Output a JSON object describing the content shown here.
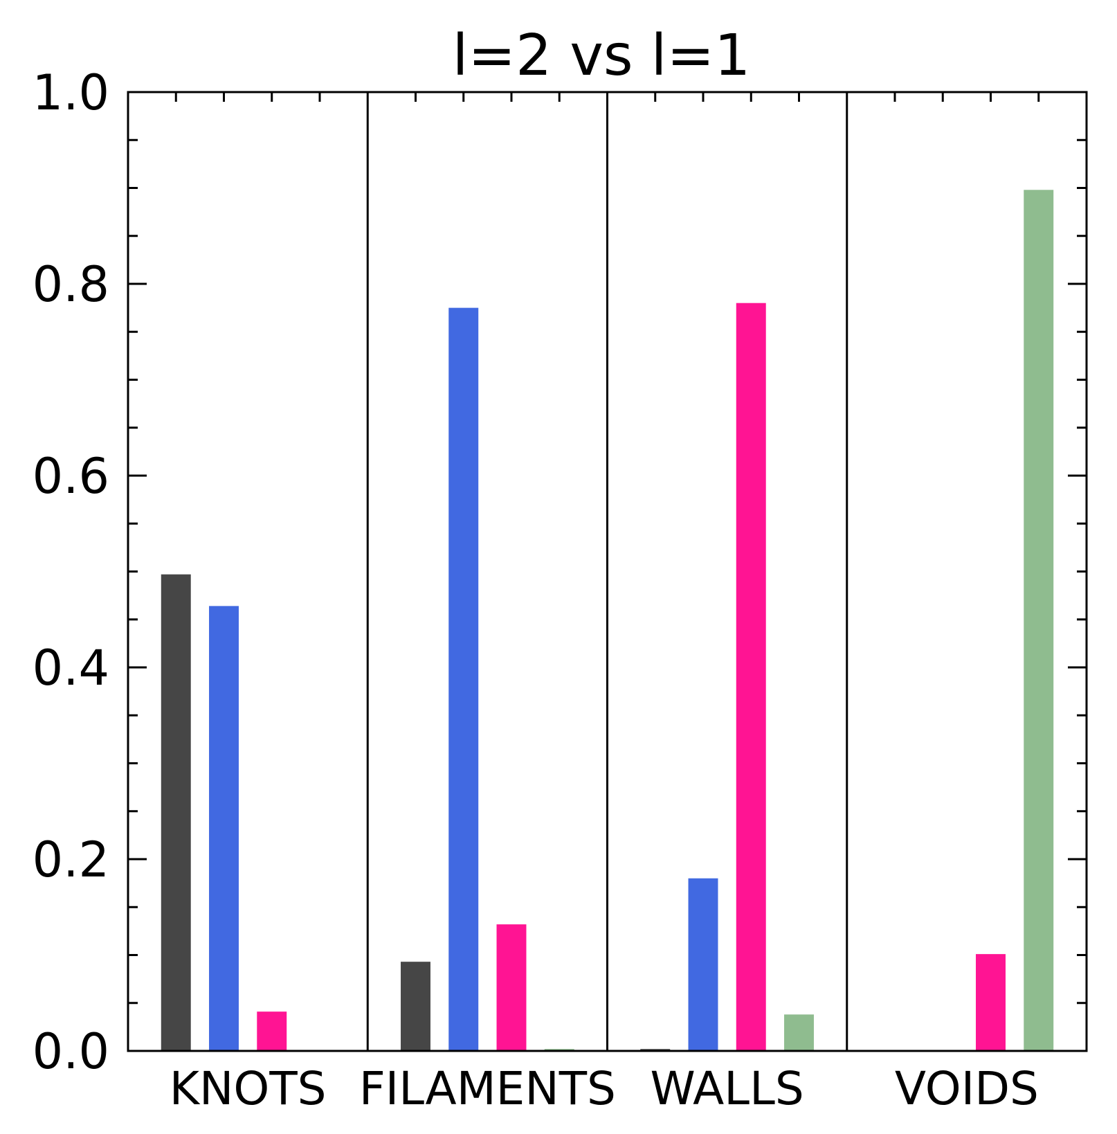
{
  "chart_data": {
    "type": "bar",
    "title": "l=2 vs l=1",
    "xlabel": "",
    "ylabel": "",
    "ylim": [
      0,
      1.0
    ],
    "yticks": [
      {
        "value": 0.0,
        "label": "0.0"
      },
      {
        "value": 0.2,
        "label": "0.2"
      },
      {
        "value": 0.4,
        "label": "0.4"
      },
      {
        "value": 0.6,
        "label": "0.6"
      },
      {
        "value": 0.8,
        "label": "0.8"
      },
      {
        "value": 1.0,
        "label": "1.0"
      }
    ],
    "minor_tick_step": 0.05,
    "categories": [
      "KNOTS",
      "FILAMENTS",
      "WALLS",
      "VOIDS"
    ],
    "series": [
      {
        "color": "#464646",
        "values": [
          0.497,
          0.093,
          0.002,
          0.0
        ]
      },
      {
        "color": "#4169e1",
        "values": [
          0.464,
          0.775,
          0.18,
          0.001
        ]
      },
      {
        "color": "#ff1493",
        "values": [
          0.041,
          0.132,
          0.78,
          0.101
        ]
      },
      {
        "color": "#8fbc8f",
        "values": [
          0.001,
          0.002,
          0.038,
          0.898
        ]
      }
    ],
    "grid": false,
    "legend": "none"
  }
}
